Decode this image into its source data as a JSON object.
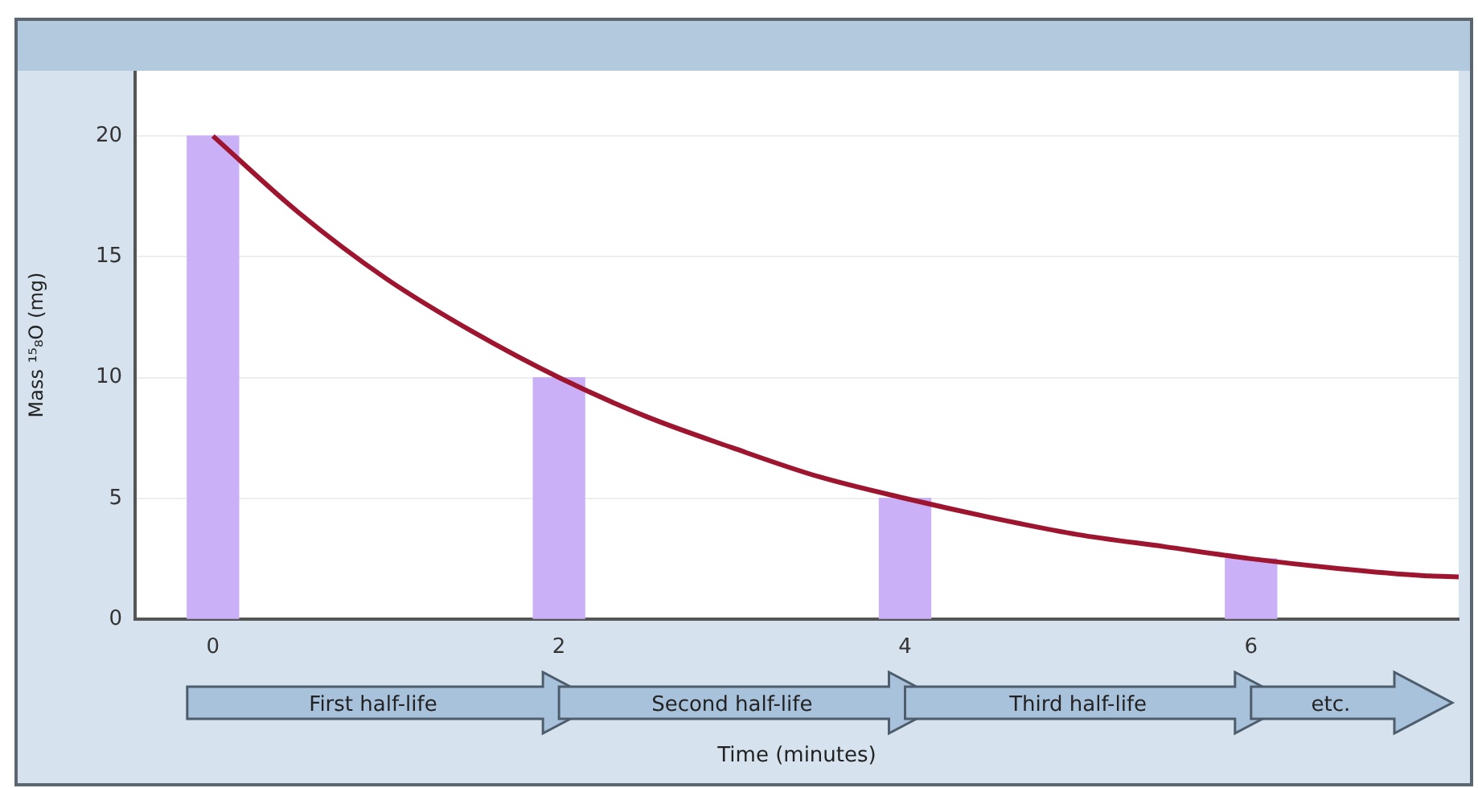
{
  "chart_data": {
    "type": "bar",
    "xlabel": "Time (minutes)",
    "ylabel": "Mass ¹⁵₈O (mg)",
    "xlim": [
      -0.45,
      7.2
    ],
    "xticks": [
      0,
      2,
      4,
      6
    ],
    "ylim": [
      0,
      22.7
    ],
    "yticks": [
      0,
      5,
      10,
      15,
      20
    ],
    "grid": "y",
    "legend": false,
    "series": [
      {
        "color": "#c9b0f7",
        "x": [
          0,
          2,
          4,
          6
        ],
        "values": [
          20,
          10,
          5,
          2.5
        ]
      },
      {
        "type": "line",
        "color": "#9e1530",
        "marker": "none",
        "x": [
          0,
          0.5,
          1,
          1.5,
          2,
          2.5,
          3,
          3.5,
          4,
          4.5,
          5,
          5.5,
          6,
          6.5,
          7,
          7.2
        ],
        "values": [
          20,
          16.8,
          14.1,
          11.9,
          10,
          8.4,
          7.1,
          5.9,
          5,
          4.2,
          3.5,
          3,
          2.5,
          2.1,
          1.8,
          1.75
        ]
      }
    ],
    "annotations": [
      "First half-life",
      "Second half-life",
      "Third half-life",
      "etc."
    ]
  }
}
